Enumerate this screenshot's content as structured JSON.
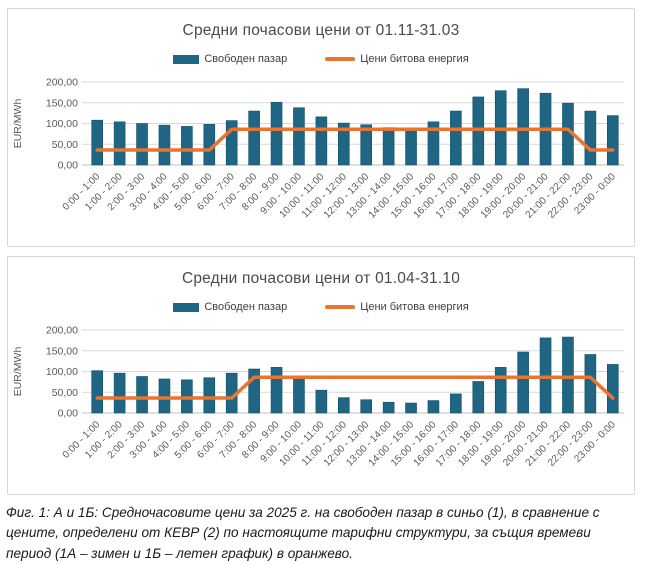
{
  "page": {
    "caption": "Фиг. 1: А и 1Б: Средночасовите цени за 2025 г. на свободен пазар в синьо (1), в сравнение с цените, определени от КЕВР (2) по настоящите тарифни структури, за същия времеви период (1А – зимен и 1Б – летен график) в оранжево."
  },
  "colors": {
    "bar": "#1f6584",
    "bar_stroke": "#14516b",
    "line": "#e8742e",
    "grid": "#d9d9d9",
    "axis": "#bfbfbf",
    "tick_text": "#595959"
  },
  "chart_data": [
    {
      "type": "bar",
      "title": "Средни почасови цени от 01.11-31.03",
      "ylabel": "EUR/MWh",
      "ylim": [
        0,
        200
      ],
      "y_ticks": [
        "0,00",
        "50,00",
        "100,00",
        "150,00",
        "200,00"
      ],
      "grid": true,
      "legend_position": "top",
      "categories": [
        "0:00 - 1:00",
        "1:00 - 2:00",
        "2:00 - 3:00",
        "3:00 - 4:00",
        "4:00 - 5:00",
        "5:00 - 6:00",
        "6:00 - 7:00",
        "7:00 - 8:00",
        "8:00 - 9:00",
        "9:00 - 10:00",
        "10:00 - 11:00",
        "11:00 - 12:00",
        "12:00 - 13:00",
        "13:00 - 14:00",
        "14:00 - 15:00",
        "15:00 - 16:00",
        "16:00 - 17:00",
        "17:00 - 18:00",
        "18:00 - 19:00",
        "19:00 - 20:00",
        "20:00 - 21:00",
        "21:00 - 22:00",
        "22:00 - 23:00",
        "23:00 - 0:00"
      ],
      "series": [
        {
          "name": "Свободен пазар",
          "type": "bar",
          "color": "#1f6584",
          "values": [
            108,
            104,
            100,
            96,
            93,
            98,
            107,
            130,
            151,
            138,
            116,
            101,
            97,
            90,
            88,
            104,
            130,
            164,
            179,
            184,
            173,
            149,
            130,
            119
          ]
        },
        {
          "name": "Цени битова енергия",
          "type": "line",
          "color": "#e8742e",
          "values": [
            36,
            36,
            36,
            36,
            36,
            36,
            86,
            86,
            86,
            86,
            86,
            86,
            86,
            86,
            86,
            86,
            86,
            86,
            86,
            86,
            86,
            86,
            36,
            36
          ]
        }
      ]
    },
    {
      "type": "bar",
      "title": "Средни почасови цени от 01.04-31.10",
      "ylabel": "EUR/MWh",
      "ylim": [
        0,
        200
      ],
      "y_ticks": [
        "0,00",
        "50,00",
        "100,00",
        "150,00",
        "200,00"
      ],
      "grid": true,
      "legend_position": "top",
      "categories": [
        "0:00 - 1:00",
        "1:00 - 2:00",
        "2:00 - 3:00",
        "3:00 - 4:00",
        "4:00 - 5:00",
        "5:00 - 6:00",
        "6:00 - 7:00",
        "7:00 - 8:00",
        "8:00 - 9:00",
        "9:00 - 10:00",
        "10:00 - 11:00",
        "11:00 - 12:00",
        "12:00 - 13:00",
        "13:00 - 14:00",
        "14:00 - 15:00",
        "15:00 - 16:00",
        "16:00 - 17:00",
        "17:00 - 18:00",
        "18:00 - 19:00",
        "19:00 - 20:00",
        "20:00 - 21:00",
        "21:00 - 22:00",
        "22:00 - 23:00",
        "23:00 - 0:00"
      ],
      "series": [
        {
          "name": "Свободен пазар",
          "type": "bar",
          "color": "#1f6584",
          "values": [
            102,
            96,
            88,
            82,
            80,
            85,
            96,
            106,
            110,
            85,
            55,
            37,
            32,
            26,
            24,
            30,
            46,
            76,
            110,
            147,
            181,
            183,
            141,
            117
          ]
        },
        {
          "name": "Цени битова енергия",
          "type": "line",
          "color": "#e8742e",
          "values": [
            36,
            36,
            36,
            36,
            36,
            36,
            36,
            86,
            86,
            86,
            86,
            86,
            86,
            86,
            86,
            86,
            86,
            86,
            86,
            86,
            86,
            86,
            86,
            36
          ]
        }
      ]
    }
  ]
}
